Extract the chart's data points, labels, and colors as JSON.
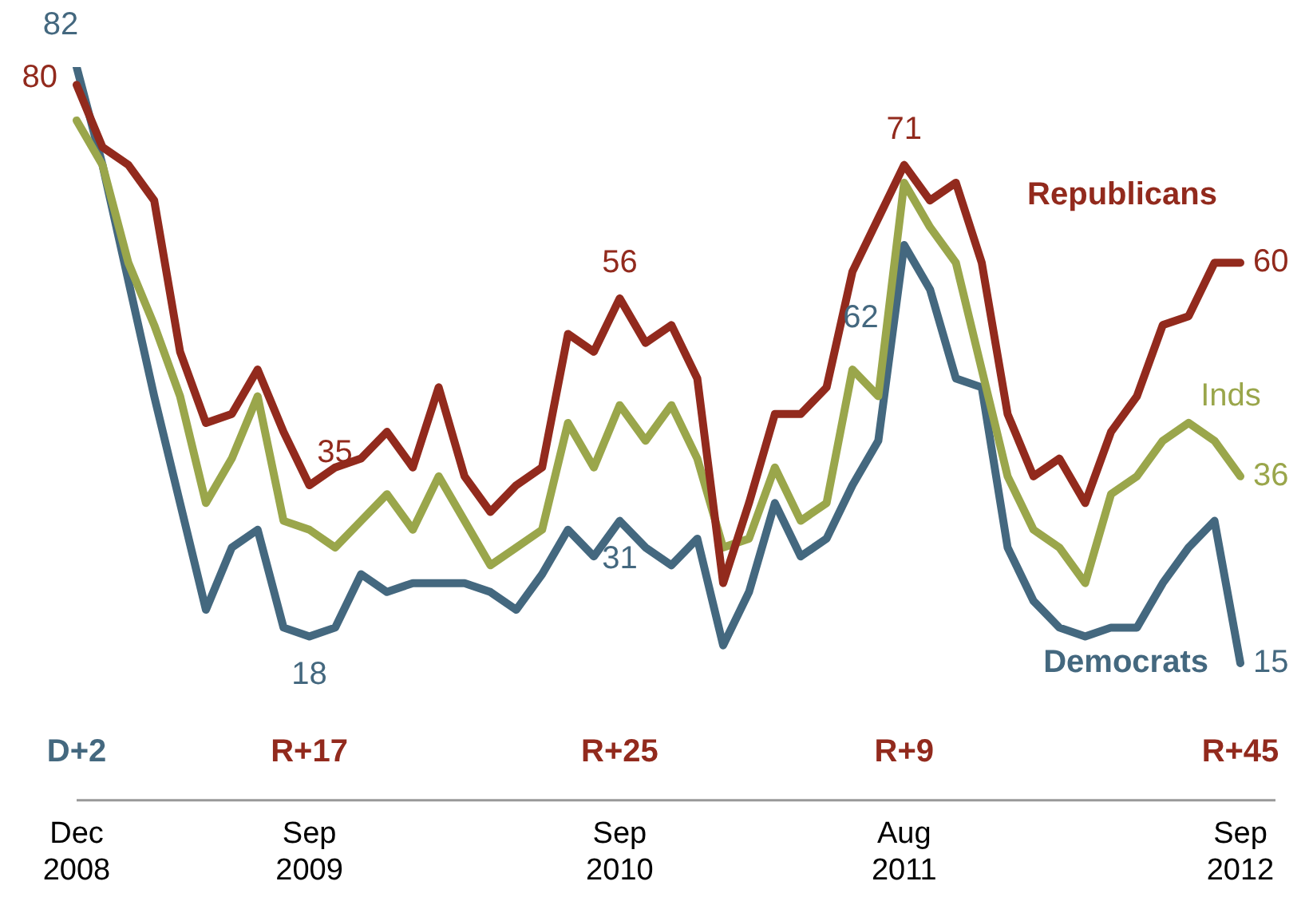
{
  "chart_data": {
    "type": "line",
    "categories": [
      "Dec 2008",
      null,
      null,
      null,
      null,
      null,
      null,
      null,
      null,
      "Sep 2009",
      null,
      null,
      null,
      null,
      null,
      null,
      null,
      null,
      null,
      null,
      null,
      "Sep 2010",
      null,
      null,
      null,
      null,
      null,
      null,
      null,
      null,
      null,
      null,
      "Aug 2011",
      null,
      null,
      null,
      null,
      null,
      null,
      null,
      null,
      null,
      null,
      null,
      null,
      "Sep 2012"
    ],
    "series": [
      {
        "name": "Republicans",
        "color": "#922a1d",
        "values": [
          80,
          73,
          71,
          67,
          50,
          42,
          43,
          48,
          41,
          35,
          37,
          38,
          41,
          37,
          46,
          36,
          32,
          35,
          37,
          52,
          50,
          56,
          51,
          53,
          47,
          24,
          33,
          43,
          43,
          46,
          59,
          65,
          71,
          67,
          69,
          60,
          43,
          36,
          38,
          33,
          41,
          45,
          53,
          54,
          60,
          60
        ],
        "value_labels": [
          "80",
          null,
          null,
          null,
          null,
          null,
          null,
          null,
          null,
          "35",
          null,
          null,
          null,
          null,
          null,
          null,
          null,
          null,
          null,
          null,
          null,
          "56",
          null,
          null,
          null,
          null,
          null,
          null,
          null,
          null,
          null,
          null,
          "71",
          null,
          null,
          null,
          null,
          null,
          null,
          null,
          null,
          null,
          null,
          null,
          null,
          "60"
        ]
      },
      {
        "name": "Inds",
        "color": "#9aa64b",
        "values": [
          76,
          71,
          60,
          53,
          45,
          33,
          38,
          45,
          31,
          30,
          28,
          31,
          34,
          30,
          36,
          31,
          26,
          28,
          30,
          42,
          37,
          44,
          40,
          44,
          38,
          28,
          29,
          37,
          31,
          33,
          48,
          45,
          69,
          64,
          60,
          48,
          36,
          30,
          28,
          24,
          34,
          36,
          40,
          42,
          40,
          36
        ],
        "value_labels": [
          null,
          null,
          null,
          null,
          null,
          null,
          null,
          null,
          null,
          null,
          null,
          null,
          null,
          null,
          null,
          null,
          null,
          null,
          null,
          null,
          null,
          null,
          null,
          null,
          null,
          null,
          null,
          null,
          null,
          null,
          null,
          null,
          null,
          null,
          null,
          null,
          null,
          null,
          null,
          null,
          null,
          null,
          null,
          null,
          null,
          "36"
        ]
      },
      {
        "name": "Democrats",
        "color": "#44687f",
        "values": [
          82,
          71,
          58,
          45,
          33,
          21,
          28,
          30,
          19,
          18,
          19,
          25,
          23,
          24,
          24,
          24,
          23,
          21,
          25,
          30,
          27,
          31,
          28,
          26,
          29,
          17,
          23,
          33,
          27,
          29,
          35,
          40,
          62,
          57,
          47,
          46,
          28,
          22,
          19,
          18,
          19,
          19,
          24,
          28,
          31,
          15
        ],
        "value_labels": [
          "82",
          null,
          null,
          null,
          null,
          null,
          null,
          null,
          null,
          "18",
          null,
          null,
          null,
          null,
          null,
          null,
          null,
          null,
          null,
          null,
          null,
          "31",
          null,
          null,
          null,
          null,
          null,
          null,
          null,
          null,
          null,
          null,
          "62",
          null,
          null,
          null,
          null,
          null,
          null,
          null,
          null,
          null,
          null,
          null,
          null,
          "15"
        ]
      }
    ],
    "tick_labels": "x",
    "legend": false,
    "grid": false,
    "marker": "none",
    "line_style": "solid",
    "annotations": [
      "D+2",
      "R+17",
      "R+25",
      "R+9",
      "R+45"
    ]
  }
}
